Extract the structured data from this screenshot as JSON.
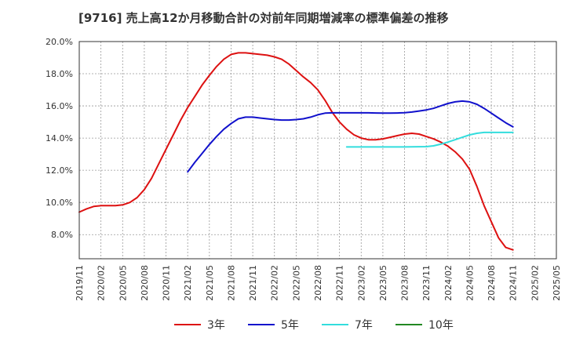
{
  "chart_data": {
    "type": "line",
    "title": "[9716]  売上高12か月移動合計の対前年同期増減率の標準偏差の推移",
    "x": [
      "2019/11",
      "2020/02",
      "2020/05",
      "2020/08",
      "2020/11",
      "2021/02",
      "2021/05",
      "2021/08",
      "2021/11",
      "2022/02",
      "2022/05",
      "2022/08",
      "2022/11",
      "2023/02",
      "2023/05",
      "2023/08",
      "2023/11",
      "2024/02",
      "2024/05",
      "2024/08",
      "2024/11",
      "2025/02",
      "2025/05"
    ],
    "yticks": [
      "8.0%",
      "10.0%",
      "12.0%",
      "14.0%",
      "16.0%",
      "18.0%",
      "20.0%"
    ],
    "ylim": [
      6.5,
      20.0
    ],
    "xlim": [
      "2019/11",
      "2025/05"
    ],
    "grid": true,
    "legend_position": "bottom",
    "series": [
      {
        "name": "3年",
        "color": "#dd1111",
        "points": [
          [
            "2019/11",
            9.4
          ],
          [
            "2019/12",
            9.6
          ],
          [
            "2020/01",
            9.75
          ],
          [
            "2020/02",
            9.8
          ],
          [
            "2020/03",
            9.8
          ],
          [
            "2020/04",
            9.8
          ],
          [
            "2020/05",
            9.85
          ],
          [
            "2020/06",
            10.0
          ],
          [
            "2020/07",
            10.3
          ],
          [
            "2020/08",
            10.8
          ],
          [
            "2020/09",
            11.5
          ],
          [
            "2020/10",
            12.4
          ],
          [
            "2020/11",
            13.3
          ],
          [
            "2020/12",
            14.2
          ],
          [
            "2021/01",
            15.1
          ],
          [
            "2021/02",
            15.9
          ],
          [
            "2021/03",
            16.6
          ],
          [
            "2021/04",
            17.3
          ],
          [
            "2021/05",
            17.9
          ],
          [
            "2021/06",
            18.45
          ],
          [
            "2021/07",
            18.9
          ],
          [
            "2021/08",
            19.2
          ],
          [
            "2021/09",
            19.3
          ],
          [
            "2021/10",
            19.3
          ],
          [
            "2021/11",
            19.25
          ],
          [
            "2021/12",
            19.2
          ],
          [
            "2022/01",
            19.15
          ],
          [
            "2022/02",
            19.05
          ],
          [
            "2022/03",
            18.9
          ],
          [
            "2022/04",
            18.6
          ],
          [
            "2022/05",
            18.2
          ],
          [
            "2022/06",
            17.8
          ],
          [
            "2022/07",
            17.45
          ],
          [
            "2022/08",
            17.0
          ],
          [
            "2022/09",
            16.35
          ],
          [
            "2022/10",
            15.6
          ],
          [
            "2022/11",
            15.0
          ],
          [
            "2022/12",
            14.55
          ],
          [
            "2023/01",
            14.2
          ],
          [
            "2023/02",
            14.0
          ],
          [
            "2023/03",
            13.9
          ],
          [
            "2023/04",
            13.9
          ],
          [
            "2023/05",
            13.95
          ],
          [
            "2023/06",
            14.05
          ],
          [
            "2023/07",
            14.15
          ],
          [
            "2023/08",
            14.25
          ],
          [
            "2023/09",
            14.3
          ],
          [
            "2023/10",
            14.25
          ],
          [
            "2023/11",
            14.1
          ],
          [
            "2023/12",
            13.95
          ],
          [
            "2024/01",
            13.75
          ],
          [
            "2024/02",
            13.5
          ],
          [
            "2024/03",
            13.15
          ],
          [
            "2024/04",
            12.7
          ],
          [
            "2024/05",
            12.05
          ],
          [
            "2024/06",
            11.0
          ],
          [
            "2024/07",
            9.8
          ],
          [
            "2024/08",
            8.8
          ],
          [
            "2024/09",
            7.8
          ],
          [
            "2024/10",
            7.2
          ],
          [
            "2024/11",
            7.05
          ]
        ]
      },
      {
        "name": "5年",
        "color": "#1111cc",
        "points": [
          [
            "2021/02",
            11.9
          ],
          [
            "2021/03",
            12.5
          ],
          [
            "2021/04",
            13.05
          ],
          [
            "2021/05",
            13.6
          ],
          [
            "2021/06",
            14.1
          ],
          [
            "2021/07",
            14.55
          ],
          [
            "2021/08",
            14.9
          ],
          [
            "2021/09",
            15.2
          ],
          [
            "2021/10",
            15.3
          ],
          [
            "2021/11",
            15.3
          ],
          [
            "2021/12",
            15.25
          ],
          [
            "2022/01",
            15.2
          ],
          [
            "2022/02",
            15.15
          ],
          [
            "2022/03",
            15.12
          ],
          [
            "2022/04",
            15.12
          ],
          [
            "2022/05",
            15.15
          ],
          [
            "2022/06",
            15.2
          ],
          [
            "2022/07",
            15.3
          ],
          [
            "2022/08",
            15.45
          ],
          [
            "2022/09",
            15.55
          ],
          [
            "2022/10",
            15.57
          ],
          [
            "2022/11",
            15.57
          ],
          [
            "2022/12",
            15.57
          ],
          [
            "2023/01",
            15.57
          ],
          [
            "2023/02",
            15.57
          ],
          [
            "2023/03",
            15.57
          ],
          [
            "2023/04",
            15.56
          ],
          [
            "2023/05",
            15.55
          ],
          [
            "2023/06",
            15.55
          ],
          [
            "2023/07",
            15.56
          ],
          [
            "2023/08",
            15.58
          ],
          [
            "2023/09",
            15.62
          ],
          [
            "2023/10",
            15.68
          ],
          [
            "2023/11",
            15.75
          ],
          [
            "2023/12",
            15.85
          ],
          [
            "2024/01",
            16.0
          ],
          [
            "2024/02",
            16.15
          ],
          [
            "2024/03",
            16.25
          ],
          [
            "2024/04",
            16.3
          ],
          [
            "2024/05",
            16.25
          ],
          [
            "2024/06",
            16.1
          ],
          [
            "2024/07",
            15.85
          ],
          [
            "2024/08",
            15.55
          ],
          [
            "2024/09",
            15.25
          ],
          [
            "2024/10",
            14.95
          ],
          [
            "2024/11",
            14.7
          ]
        ]
      },
      {
        "name": "7年",
        "color": "#33dddd",
        "points": [
          [
            "2022/12",
            13.45
          ],
          [
            "2023/02",
            13.45
          ],
          [
            "2023/05",
            13.45
          ],
          [
            "2023/08",
            13.45
          ],
          [
            "2023/11",
            13.47
          ],
          [
            "2023/12",
            13.52
          ],
          [
            "2024/01",
            13.62
          ],
          [
            "2024/02",
            13.75
          ],
          [
            "2024/03",
            13.9
          ],
          [
            "2024/04",
            14.05
          ],
          [
            "2024/05",
            14.2
          ],
          [
            "2024/06",
            14.3
          ],
          [
            "2024/07",
            14.35
          ],
          [
            "2024/08",
            14.35
          ],
          [
            "2024/09",
            14.35
          ],
          [
            "2024/10",
            14.35
          ],
          [
            "2024/11",
            14.35
          ]
        ]
      },
      {
        "name": "10年",
        "color": "#228822",
        "points": []
      }
    ]
  }
}
